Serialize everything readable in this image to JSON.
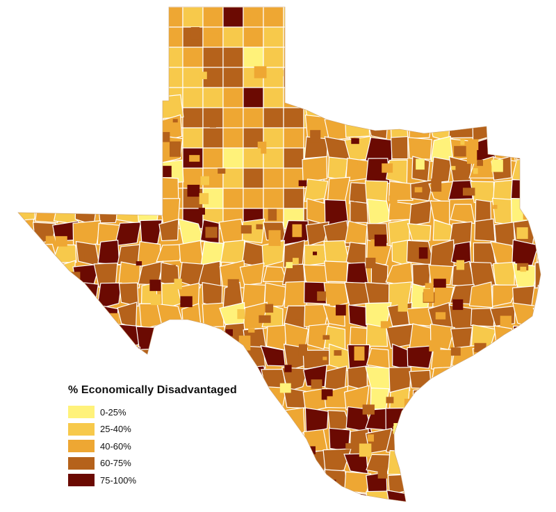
{
  "legend": {
    "title": "% Economically Disadvantaged",
    "items": [
      {
        "label": "0-25%",
        "color": "#fff27a"
      },
      {
        "label": "25-40%",
        "color": "#f7c94b"
      },
      {
        "label": "40-60%",
        "color": "#eea733"
      },
      {
        "label": "60-75%",
        "color": "#b5621b"
      },
      {
        "label": "75-100%",
        "color": "#6b0a02"
      }
    ]
  },
  "map": {
    "boundary_color": "#ffffff",
    "background_color": "#ffffff"
  }
}
